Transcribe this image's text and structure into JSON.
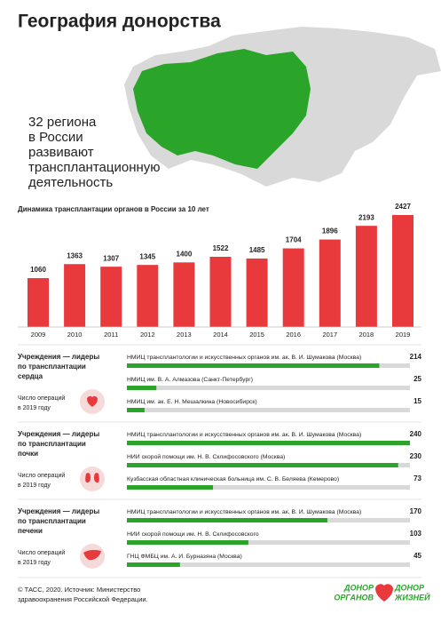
{
  "title": "География донорства",
  "subtitle": [
    "32 региона",
    "в России",
    "развивают",
    "трансплантационную",
    "деятельность"
  ],
  "chart_data": [
    {
      "type": "bar",
      "title": "Динамика трансплантации органов в России за 10 лет",
      "categories": [
        "2009",
        "2010",
        "2011",
        "2012",
        "2013",
        "2014",
        "2015",
        "2016",
        "2017",
        "2018",
        "2019"
      ],
      "values": [
        1060,
        1363,
        1307,
        1345,
        1400,
        1522,
        1485,
        1704,
        1896,
        2193,
        2427
      ],
      "color": "#e8393c"
    },
    {
      "type": "hbar",
      "title": [
        "Учреждения — лидеры",
        "по трансплантации",
        "сердца"
      ],
      "note": [
        "Число операций",
        "в 2019 году"
      ],
      "categories": [
        "НМИЦ трансплантологии и искусственных органов им. ак. В. И. Шумакова (Москва)",
        "НМИЦ им. В. А. Алмазова (Санкт-Петербург)",
        "НМИЦ им. ак. Е. Н. Мешалкина (Новосибирск)"
      ],
      "values": [
        214,
        25,
        15
      ],
      "color": "#2aa52a"
    },
    {
      "type": "hbar",
      "title": [
        "Учреждения — лидеры",
        "по трансплантации",
        "почки"
      ],
      "note": [
        "Число операций",
        "в 2019 году"
      ],
      "categories": [
        "НМИЦ трансплантологии и искусственных органов им. ак. В. И. Шумакова (Москва)",
        "НИИ скорой помощи им. Н. В. Склифосовского (Москва)",
        "Кузбасская областная клиническая больница им. С. В. Беляева (Кемерово)"
      ],
      "values": [
        240,
        230,
        73
      ],
      "color": "#2aa52a"
    },
    {
      "type": "hbar",
      "title": [
        "Учреждения — лидеры",
        "по трансплантации",
        "печени"
      ],
      "note": [
        "Число операций",
        "в 2019 году"
      ],
      "categories": [
        "НМИЦ трансплантологии и искусственных органов им. ак. В. И. Шумакова (Москва)",
        "НИИ скорой помощи им. Н. В. Склифосовского",
        "ГНЦ ФМБЦ им. А. И. Бурназяна (Москва)"
      ],
      "values": [
        170,
        103,
        45
      ],
      "color": "#2aa52a"
    }
  ],
  "footer": [
    "© ТАСС, 2020. Источник: Министерство",
    "здравоохранения Российской Федерации."
  ],
  "logos": [
    [
      "ДОНОР",
      "ОРГАНОВ"
    ],
    [
      "ДОНОР",
      "ЖИЗНЕЙ"
    ]
  ]
}
